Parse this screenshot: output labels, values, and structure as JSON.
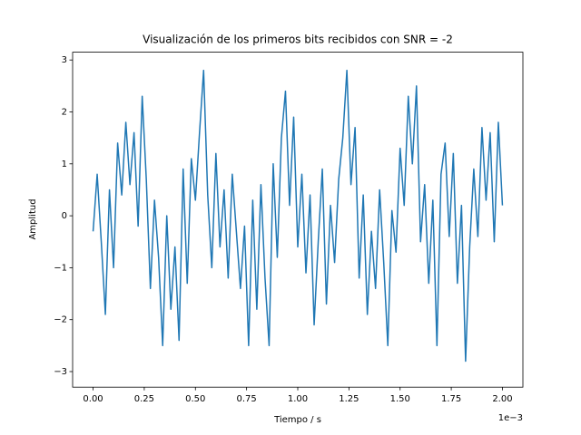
{
  "chart_data": {
    "type": "line",
    "title": "Visualización de los primeros bits recibidos con SNR = -2",
    "x_label": "Tiempo / s",
    "y_label": "Amplitud",
    "x_offset_label": "1e−3",
    "xlim": [
      -0.1,
      2.1
    ],
    "ylim": [
      -3.3,
      3.15
    ],
    "xticks": [
      {
        "value": 0,
        "label": "0.00"
      },
      {
        "value": 0.25,
        "label": "0.25"
      },
      {
        "value": 0.5,
        "label": "0.50"
      },
      {
        "value": 0.75,
        "label": "0.75"
      },
      {
        "value": 1,
        "label": "1.00"
      },
      {
        "value": 1.25,
        "label": "1.25"
      },
      {
        "value": 1.5,
        "label": "1.50"
      },
      {
        "value": 1.75,
        "label": "1.75"
      },
      {
        "value": 2,
        "label": "2.00"
      }
    ],
    "yticks": [
      {
        "value": -3,
        "label": "−3"
      },
      {
        "value": -2,
        "label": "−2"
      },
      {
        "value": -1,
        "label": "−1"
      },
      0,
      1,
      2,
      3
    ],
    "x": [
      0,
      0.02,
      0.04,
      0.06,
      0.08,
      0.1,
      0.12,
      0.14,
      0.16,
      0.18,
      0.2,
      0.22,
      0.24,
      0.26,
      0.28,
      0.3,
      0.32,
      0.34,
      0.36,
      0.38,
      0.4,
      0.42,
      0.44,
      0.46,
      0.48,
      0.5,
      0.52,
      0.54,
      0.56,
      0.58,
      0.6,
      0.62,
      0.64,
      0.66,
      0.68,
      0.7,
      0.72,
      0.74,
      0.76,
      0.78,
      0.8,
      0.82,
      0.84,
      0.86,
      0.88,
      0.9,
      0.92,
      0.94,
      0.96,
      0.98,
      1,
      1.02,
      1.04,
      1.06,
      1.08,
      1.1,
      1.12,
      1.14,
      1.16,
      1.18,
      1.2,
      1.22,
      1.24,
      1.26,
      1.28,
      1.3,
      1.32,
      1.34,
      1.36,
      1.38,
      1.4,
      1.42,
      1.44,
      1.46,
      1.48,
      1.5,
      1.52,
      1.54,
      1.56,
      1.58,
      1.6,
      1.62,
      1.64,
      1.66,
      1.68,
      1.7,
      1.72,
      1.74,
      1.76,
      1.78,
      1.8,
      1.82,
      1.84,
      1.86,
      1.88,
      1.9,
      1.92,
      1.94,
      1.96,
      1.98,
      2
    ],
    "series": [
      {
        "color": "#1f77b4",
        "values": [
          -0.3,
          0.8,
          -0.5,
          -1.9,
          0.5,
          -1.0,
          1.4,
          0.4,
          1.8,
          0.6,
          1.6,
          -0.2,
          2.3,
          0.7,
          -1.4,
          0.3,
          -0.8,
          -2.5,
          0.0,
          -1.8,
          -0.6,
          -2.4,
          0.9,
          -1.3,
          1.1,
          0.3,
          1.6,
          2.8,
          0.4,
          -1.0,
          1.2,
          -0.6,
          0.5,
          -1.2,
          0.8,
          -0.3,
          -1.4,
          -0.2,
          -2.5,
          0.3,
          -1.8,
          0.6,
          -1.2,
          -2.5,
          1.0,
          -0.8,
          1.5,
          2.4,
          0.2,
          1.9,
          -0.6,
          0.8,
          -1.1,
          0.4,
          -2.1,
          -0.5,
          0.9,
          -1.7,
          0.2,
          -0.9,
          0.7,
          1.5,
          2.8,
          0.6,
          1.7,
          -1.2,
          0.4,
          -1.9,
          -0.3,
          -1.4,
          0.5,
          -0.9,
          -2.5,
          0.1,
          -0.7,
          1.3,
          0.2,
          2.3,
          1.0,
          2.5,
          -0.5,
          0.6,
          -1.3,
          0.3,
          -2.5,
          0.8,
          1.4,
          -0.4,
          1.2,
          -1.3,
          0.2,
          -2.8,
          -0.6,
          0.9,
          -0.4,
          1.7,
          0.3,
          1.6,
          -0.5,
          1.8,
          0.2
        ]
      }
    ]
  }
}
